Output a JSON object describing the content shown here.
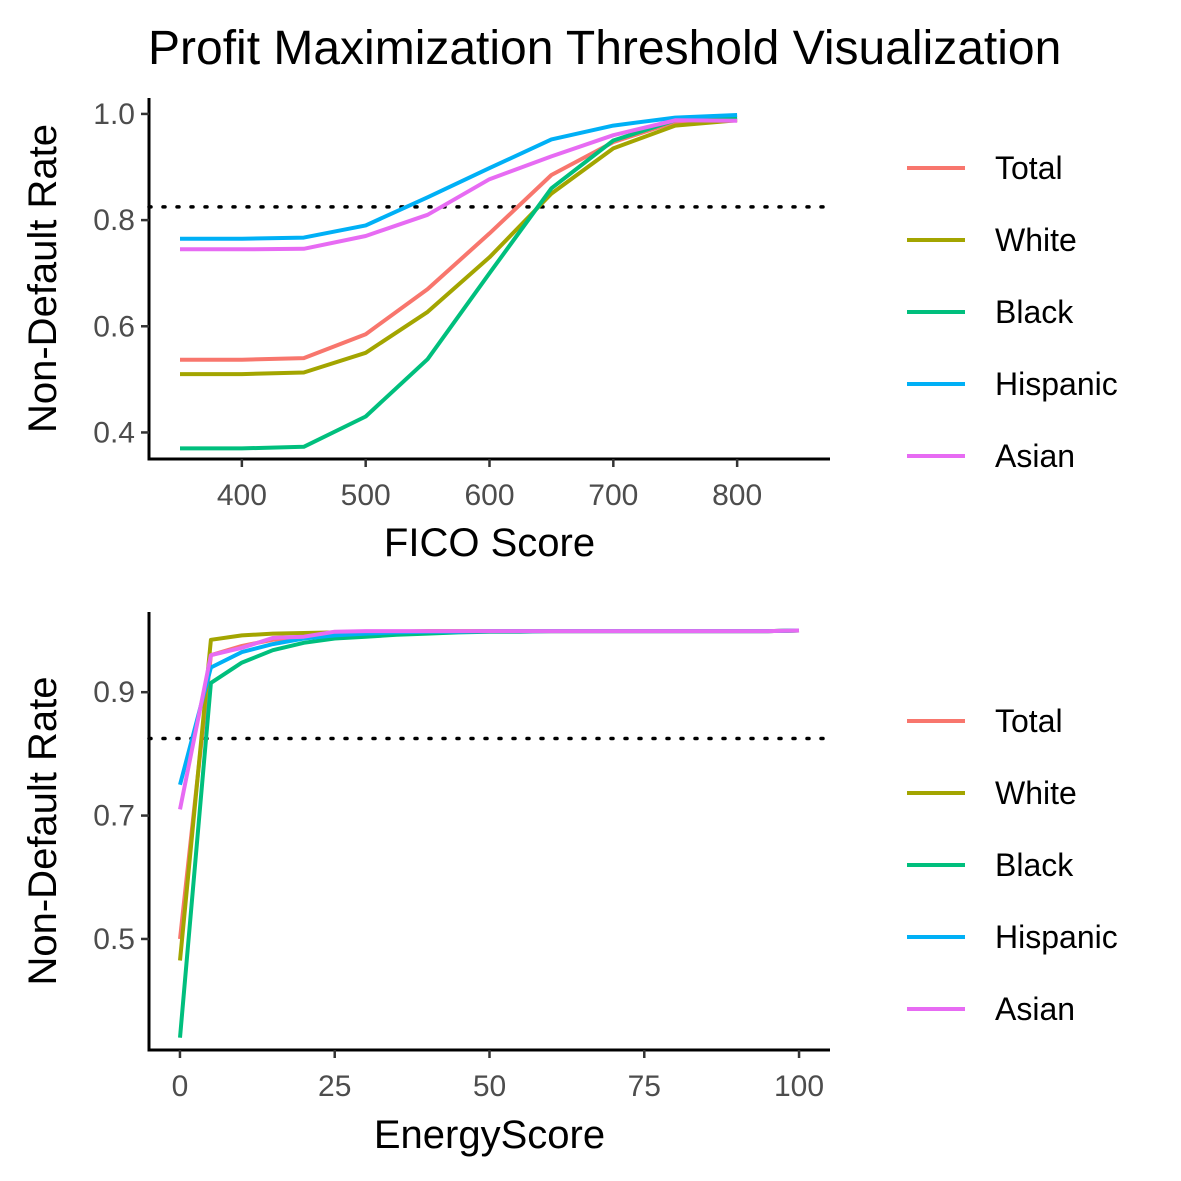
{
  "title": "Profit Maximization Threshold Visualization",
  "chart_data": [
    {
      "type": "line",
      "xlabel": "FICO Score",
      "ylabel": "Non-Default Rate",
      "xlim": [
        325,
        875
      ],
      "ylim": [
        0.35,
        1.03
      ],
      "x_ticks": [
        400,
        500,
        600,
        700,
        800
      ],
      "x_tick_labels": [
        "400",
        "500",
        "600",
        "700",
        "800"
      ],
      "y_ticks": [
        0.4,
        0.6,
        0.8,
        1.0
      ],
      "y_tick_labels": [
        "0.4",
        "0.6",
        "0.8",
        "1.0"
      ],
      "threshold": 0.825,
      "grid": false,
      "legend_position": "right",
      "x": [
        350,
        400,
        450,
        500,
        550,
        600,
        650,
        700,
        750,
        800
      ],
      "series": [
        {
          "name": "Total",
          "color": "#F8766D",
          "values": [
            0.537,
            0.537,
            0.54,
            0.585,
            0.67,
            0.775,
            0.885,
            0.947,
            0.985,
            0.99
          ]
        },
        {
          "name": "White",
          "color": "#A3A500",
          "values": [
            0.51,
            0.51,
            0.513,
            0.55,
            0.627,
            0.73,
            0.85,
            0.935,
            0.978,
            0.988
          ]
        },
        {
          "name": "Black",
          "color": "#00BF7D",
          "values": [
            0.37,
            0.37,
            0.373,
            0.43,
            0.538,
            0.7,
            0.86,
            0.95,
            0.988,
            0.993
          ]
        },
        {
          "name": "Hispanic",
          "color": "#00B0F6",
          "values": [
            0.765,
            0.765,
            0.767,
            0.79,
            0.843,
            0.898,
            0.952,
            0.978,
            0.993,
            0.998
          ]
        },
        {
          "name": "Asian",
          "color": "#E76BF3",
          "values": [
            0.745,
            0.745,
            0.746,
            0.77,
            0.81,
            0.877,
            0.92,
            0.96,
            0.988,
            0.987
          ]
        }
      ]
    },
    {
      "type": "line",
      "xlabel": "EnergyScore",
      "ylabel": "Non-Default Rate",
      "xlim": [
        -5,
        105
      ],
      "ylim": [
        0.32,
        1.03
      ],
      "x_ticks": [
        0,
        25,
        50,
        75,
        100
      ],
      "x_tick_labels": [
        "0",
        "25",
        "50",
        "75",
        "100"
      ],
      "y_ticks": [
        0.5,
        0.7,
        0.9
      ],
      "y_tick_labels": [
        "0.5",
        "0.7",
        "0.9"
      ],
      "threshold": 0.825,
      "grid": false,
      "legend_position": "right",
      "x": [
        0,
        5,
        10,
        15,
        20,
        25,
        30,
        35,
        40,
        45,
        50,
        55,
        60,
        65,
        70,
        75,
        80,
        85,
        90,
        95,
        100
      ],
      "series": [
        {
          "name": "Total",
          "color": "#F8766D",
          "values": [
            0.5,
            0.96,
            0.975,
            0.985,
            0.99,
            0.994,
            0.996,
            0.997,
            0.998,
            0.998,
            0.999,
            0.999,
            0.999,
            0.999,
            0.999,
            0.999,
            0.999,
            0.999,
            0.999,
            0.999,
            1.0
          ]
        },
        {
          "name": "White",
          "color": "#A3A500",
          "values": [
            0.465,
            0.985,
            0.992,
            0.995,
            0.996,
            0.997,
            0.998,
            0.998,
            0.999,
            0.999,
            0.999,
            0.999,
            0.999,
            0.999,
            0.999,
            0.999,
            0.999,
            0.999,
            0.999,
            0.999,
            1.0
          ]
        },
        {
          "name": "Black",
          "color": "#00BF7D",
          "values": [
            0.34,
            0.915,
            0.948,
            0.968,
            0.98,
            0.987,
            0.99,
            0.993,
            0.995,
            0.997,
            0.998,
            0.998,
            0.999,
            0.999,
            0.999,
            0.999,
            0.999,
            0.999,
            0.999,
            0.999,
            1.0
          ]
        },
        {
          "name": "Hispanic",
          "color": "#00B0F6",
          "values": [
            0.75,
            0.94,
            0.965,
            0.978,
            0.987,
            0.992,
            0.995,
            0.997,
            0.998,
            0.998,
            0.999,
            0.999,
            0.999,
            0.999,
            0.999,
            0.999,
            0.999,
            0.999,
            0.999,
            0.999,
            1.0
          ]
        },
        {
          "name": "Asian",
          "color": "#E76BF3",
          "values": [
            0.71,
            0.96,
            0.972,
            0.988,
            0.99,
            0.998,
            0.999,
            0.999,
            0.999,
            0.999,
            0.999,
            0.999,
            0.999,
            0.999,
            0.999,
            0.999,
            0.999,
            0.999,
            0.999,
            0.999,
            1.0
          ]
        }
      ]
    }
  ]
}
